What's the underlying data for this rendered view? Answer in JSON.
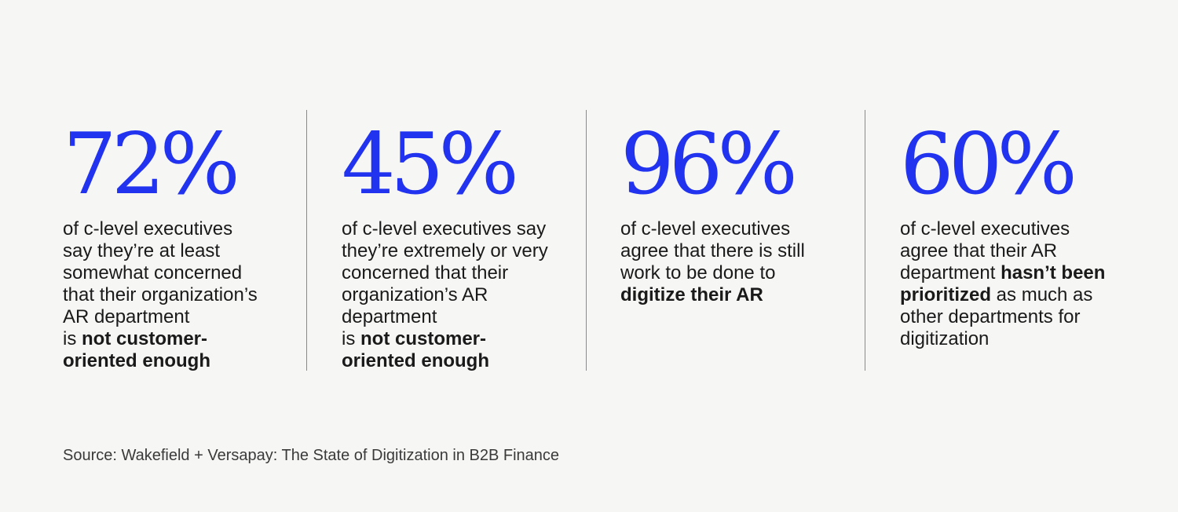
{
  "stats": [
    {
      "value": "72%",
      "lines": [
        {
          "parts": [
            {
              "text": "of c-level executives",
              "bold": false
            }
          ]
        },
        {
          "parts": [
            {
              "text": "say they’re at least",
              "bold": false
            }
          ]
        },
        {
          "parts": [
            {
              "text": "somewhat concerned",
              "bold": false
            }
          ]
        },
        {
          "parts": [
            {
              "text": "that their organization’s",
              "bold": false
            }
          ]
        },
        {
          "parts": [
            {
              "text": "AR department",
              "bold": false
            }
          ]
        },
        {
          "parts": [
            {
              "text": "is ",
              "bold": false
            },
            {
              "text": "not customer-",
              "bold": true
            }
          ]
        },
        {
          "parts": [
            {
              "text": "oriented enough",
              "bold": true
            }
          ]
        }
      ]
    },
    {
      "value": "45%",
      "lines": [
        {
          "parts": [
            {
              "text": "of c-level executives say",
              "bold": false
            }
          ]
        },
        {
          "parts": [
            {
              "text": "they’re extremely or very",
              "bold": false
            }
          ]
        },
        {
          "parts": [
            {
              "text": "concerned that their",
              "bold": false
            }
          ]
        },
        {
          "parts": [
            {
              "text": "organization’s AR",
              "bold": false
            }
          ]
        },
        {
          "parts": [
            {
              "text": "department",
              "bold": false
            }
          ]
        },
        {
          "parts": [
            {
              "text": "is ",
              "bold": false
            },
            {
              "text": "not customer-",
              "bold": true
            }
          ]
        },
        {
          "parts": [
            {
              "text": "oriented enough",
              "bold": true
            }
          ]
        }
      ]
    },
    {
      "value": "96%",
      "lines": [
        {
          "parts": [
            {
              "text": "of c-level executives",
              "bold": false
            }
          ]
        },
        {
          "parts": [
            {
              "text": "agree that there is still",
              "bold": false
            }
          ]
        },
        {
          "parts": [
            {
              "text": "work to be done to",
              "bold": false
            }
          ]
        },
        {
          "parts": [
            {
              "text": "digitize their AR",
              "bold": true
            }
          ]
        }
      ]
    },
    {
      "value": "60%",
      "lines": [
        {
          "parts": [
            {
              "text": "of c-level executives",
              "bold": false
            }
          ]
        },
        {
          "parts": [
            {
              "text": "agree that their AR",
              "bold": false
            }
          ]
        },
        {
          "parts": [
            {
              "text": "department ",
              "bold": false
            },
            {
              "text": "hasn’t been",
              "bold": true
            }
          ]
        },
        {
          "parts": [
            {
              "text": "prioritized",
              "bold": true
            },
            {
              "text": " as much as",
              "bold": false
            }
          ]
        },
        {
          "parts": [
            {
              "text": "other departments for",
              "bold": false
            }
          ]
        },
        {
          "parts": [
            {
              "text": "digitization",
              "bold": false
            }
          ]
        }
      ]
    }
  ],
  "source": "Source: Wakefield + Versapay: The State of Digitization in B2B Finance",
  "colors": {
    "accent": "#2233f0",
    "text": "#1a1a1a",
    "background": "#f6f6f4",
    "divider": "#8a8a8a"
  }
}
